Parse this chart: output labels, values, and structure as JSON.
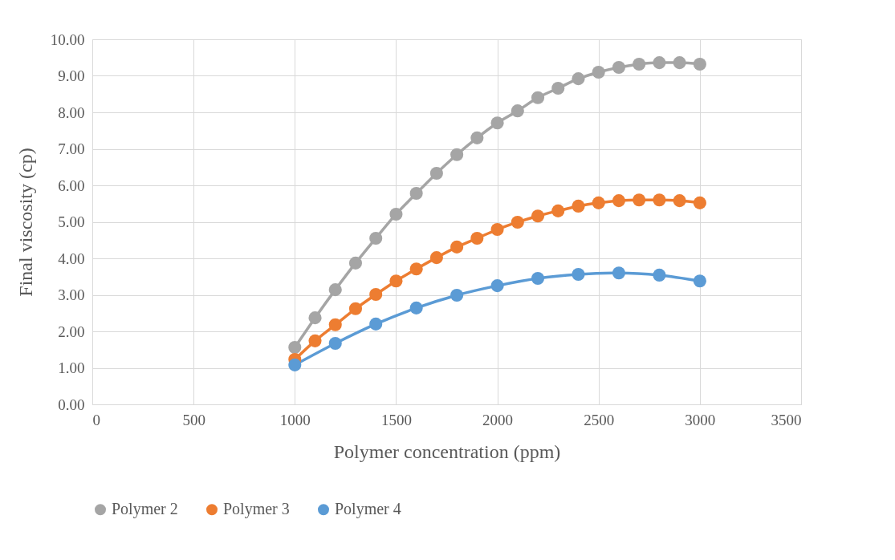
{
  "chart_data": {
    "type": "line",
    "xlabel": "Polymer concentration (ppm)",
    "ylabel": "Final viscosity (cp)",
    "xlim": [
      0,
      3500
    ],
    "xticks": [
      0,
      500,
      1000,
      1500,
      2000,
      2500,
      3000,
      3500
    ],
    "ylim": [
      0,
      10
    ],
    "yticks": [
      {
        "value": 0,
        "label": "0.00"
      },
      {
        "value": 1,
        "label": "1.00"
      },
      {
        "value": 2,
        "label": "2.00"
      },
      {
        "value": 3,
        "label": "3.00"
      },
      {
        "value": 4,
        "label": "4.00"
      },
      {
        "value": 5,
        "label": "5.00"
      },
      {
        "value": 6,
        "label": "6.00"
      },
      {
        "value": 7,
        "label": "7.00"
      },
      {
        "value": 8,
        "label": "8.00"
      },
      {
        "value": 9,
        "label": "9.00"
      },
      {
        "value": 10,
        "label": "10.00"
      }
    ],
    "grid": true,
    "legend": "bottom",
    "marker": "circle",
    "line_style": "solid",
    "series": [
      {
        "name": "Polymer 2",
        "color": "#a5a5a5",
        "x": [
          1000,
          1100,
          1200,
          1300,
          1400,
          1500,
          1600,
          1700,
          1800,
          1900,
          2000,
          2100,
          2200,
          2300,
          2400,
          2500,
          2600,
          2700,
          2800,
          2900,
          3000
        ],
        "values": [
          1.56,
          2.37,
          3.14,
          3.87,
          4.55,
          5.21,
          5.78,
          6.33,
          6.84,
          7.3,
          7.71,
          8.04,
          8.4,
          8.66,
          8.92,
          9.1,
          9.23,
          9.32,
          9.36,
          9.36,
          9.32
        ]
      },
      {
        "name": "Polymer 3",
        "color": "#ed7d31",
        "x": [
          1000,
          1100,
          1200,
          1300,
          1400,
          1500,
          1600,
          1700,
          1800,
          1900,
          2000,
          2100,
          2200,
          2300,
          2400,
          2500,
          2600,
          2700,
          2800,
          2900,
          3000
        ],
        "values": [
          1.23,
          1.74,
          2.18,
          2.62,
          3.01,
          3.38,
          3.71,
          4.02,
          4.31,
          4.55,
          4.79,
          4.99,
          5.16,
          5.3,
          5.43,
          5.52,
          5.58,
          5.6,
          5.6,
          5.58,
          5.52
        ]
      },
      {
        "name": "Polymer 4",
        "color": "#5b9bd5",
        "x": [
          1000,
          1200,
          1400,
          1600,
          1800,
          2000,
          2200,
          2400,
          2600,
          2800,
          3000
        ],
        "values": [
          1.08,
          1.67,
          2.2,
          2.64,
          2.99,
          3.25,
          3.45,
          3.56,
          3.6,
          3.54,
          3.38
        ]
      }
    ]
  }
}
